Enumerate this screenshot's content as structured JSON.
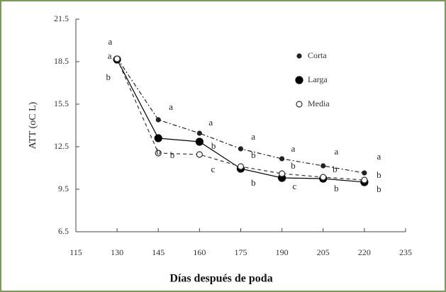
{
  "chart_data": {
    "type": "line",
    "x_label": "Días después de poda",
    "y_label": "ATT (oC L)",
    "xlim": [
      115,
      235
    ],
    "xticks": [
      115,
      130,
      145,
      160,
      175,
      190,
      205,
      220,
      235
    ],
    "ylim": [
      6.5,
      21.5
    ],
    "yticks": [
      {
        "value": 6.5,
        "label": "6.5"
      },
      {
        "value": 9.5,
        "label": "9.5"
      },
      {
        "value": 12.5,
        "label": "12.5"
      },
      {
        "value": 15.5,
        "label": "15.5"
      },
      {
        "value": 18.5,
        "label": "18.5"
      },
      {
        "value": 21.5,
        "label": "21.5"
      }
    ],
    "x": [
      130,
      145,
      160,
      175,
      190,
      205,
      220
    ],
    "series": [
      {
        "name": "Corta",
        "color": "#222222",
        "marker": "dot",
        "dash": "6 3 2 3",
        "values": [
          18.75,
          14.4,
          13.45,
          12.35,
          11.65,
          11.15,
          10.65
        ]
      },
      {
        "name": "Larga",
        "color": "#000000",
        "marker": "filled",
        "dash": "none",
        "values": [
          18.65,
          13.1,
          12.85,
          10.95,
          10.3,
          10.25,
          10.0
        ]
      },
      {
        "name": "Media",
        "color": "#333333",
        "marker": "open",
        "dash": "5 4",
        "values": [
          18.7,
          12.05,
          11.95,
          11.1,
          10.6,
          10.35,
          10.15
        ]
      }
    ],
    "legend": "upper right",
    "annotations": [
      {
        "text": "a",
        "x": 127.5,
        "y": 19.85
      },
      {
        "text": "a",
        "x": 127.3,
        "y": 18.85
      },
      {
        "text": "b",
        "x": 126.8,
        "y": 17.35
      },
      {
        "text": "a",
        "x": 149.6,
        "y": 15.25
      },
      {
        "text": "b",
        "x": 145.1,
        "y": 12.1
      },
      {
        "text": "b",
        "x": 150.1,
        "y": 11.85
      },
      {
        "text": "a",
        "x": 164.1,
        "y": 14.15
      },
      {
        "text": "b",
        "x": 165.1,
        "y": 12.5
      },
      {
        "text": "c",
        "x": 164.9,
        "y": 10.85
      },
      {
        "text": "a",
        "x": 179.6,
        "y": 13.15
      },
      {
        "text": "b",
        "x": 179.6,
        "y": 11.85
      },
      {
        "text": "b",
        "x": 179.6,
        "y": 9.9
      },
      {
        "text": "a",
        "x": 194.1,
        "y": 12.3
      },
      {
        "text": "b",
        "x": 194.1,
        "y": 11.1
      },
      {
        "text": "c",
        "x": 194.6,
        "y": 9.65
      },
      {
        "text": "a",
        "x": 209.8,
        "y": 12.1
      },
      {
        "text": "b",
        "x": 209.3,
        "y": 10.85
      },
      {
        "text": "b",
        "x": 209.8,
        "y": 9.5
      },
      {
        "text": "a",
        "x": 225.3,
        "y": 11.75
      },
      {
        "text": "b",
        "x": 225.3,
        "y": 10.45
      },
      {
        "text": "b",
        "x": 225.3,
        "y": 9.45
      }
    ]
  }
}
